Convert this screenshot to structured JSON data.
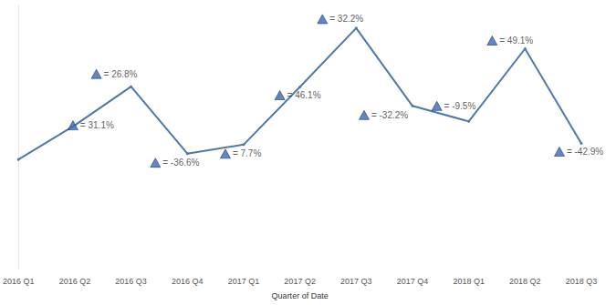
{
  "chart_data": {
    "type": "line",
    "x_label": "Quarter of Date",
    "categories": [
      "2016 Q1",
      "2016 Q2",
      "2016 Q3",
      "2016 Q4",
      "2017 Q1",
      "2017 Q2",
      "2017 Q3",
      "2017 Q4",
      "2018 Q1",
      "2018 Q2",
      "2018 Q3"
    ],
    "values": [
      100,
      131.1,
      166.2,
      105.4,
      113.5,
      165.9,
      219.4,
      148.7,
      134.6,
      200.7,
      114.6
    ],
    "annotations": [
      null,
      "= 31.1%",
      "= 26.8%",
      "= -36.6%",
      "= 7.7%",
      "= 46.1%",
      "= 32.2%",
      "= -32.2%",
      "= -9.5%",
      "= 49.1%",
      "= -42.9%"
    ],
    "color": "#4e79a7",
    "ylim": [
      0,
      240
    ],
    "grid": false,
    "tick_labels": "x"
  }
}
